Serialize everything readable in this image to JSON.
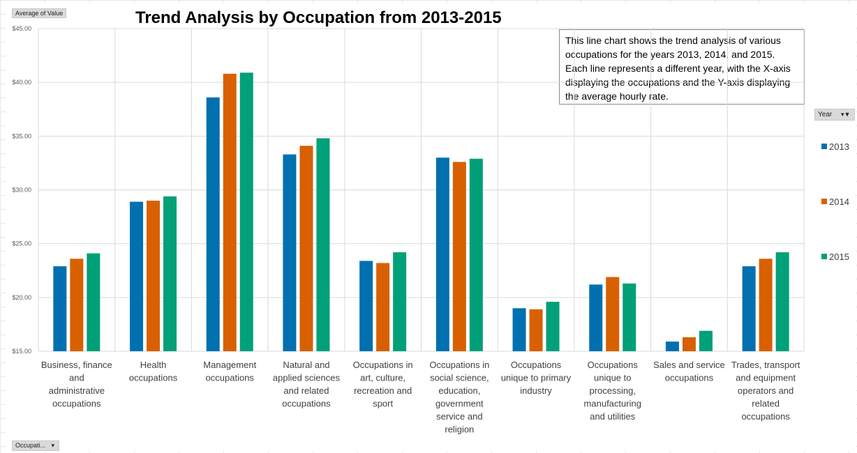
{
  "field_buttons": {
    "values": "Average of Value",
    "legend": "Year",
    "axis": "Occupati..."
  },
  "textbox": "This line chart shows the trend analysis of various occupations for the years 2013, 2014, and 2015. Each line represents a different year, with the X-axis displaying the occupations and the Y-axis displaying the average hourly rate.",
  "chart_data": {
    "type": "bar",
    "title": "Trend Analysis by Occupation from 2013-2015",
    "xlabel": "",
    "ylabel": "",
    "ylim": [
      15,
      45
    ],
    "y_ticks": [
      "$15.00",
      "$20.00",
      "$25.00",
      "$30.00",
      "$35.00",
      "$40.00",
      "$45.00"
    ],
    "grid": true,
    "legend_position": "right",
    "categories": [
      "Business, finance and administrative occupations",
      "Health occupations",
      "Management occupations",
      "Natural and applied sciences and related occupations",
      "Occupations in art, culture, recreation and sport",
      "Occupations in social science, education, government service and religion",
      "Occupations unique to primary industry",
      "Occupations unique to processing, manufacturing and utilities",
      "Sales and service occupations",
      "Trades, transport and equipment operators and related occupations"
    ],
    "category_lines": [
      [
        "Business, finance",
        "and",
        "administrative",
        "occupations"
      ],
      [
        "Health",
        "occupations"
      ],
      [
        "Management",
        "occupations"
      ],
      [
        "Natural and",
        "applied sciences",
        "and related",
        "occupations"
      ],
      [
        "Occupations in",
        "art, culture,",
        "recreation and",
        "sport"
      ],
      [
        "Occupations in",
        "social science,",
        "education,",
        "government",
        "service and",
        "religion"
      ],
      [
        "Occupations",
        "unique to primary",
        "industry"
      ],
      [
        "Occupations",
        "unique to",
        "processing,",
        "manufacturing",
        "and utilities"
      ],
      [
        "Sales and service",
        "occupations"
      ],
      [
        "Trades, transport",
        "and equipment",
        "operators and",
        "related",
        "occupations"
      ]
    ],
    "series": [
      {
        "name": "2013",
        "color": "#0070b0",
        "values": [
          22.9,
          28.9,
          38.6,
          33.3,
          23.4,
          33.0,
          19.0,
          21.2,
          15.9,
          22.9
        ]
      },
      {
        "name": "2014",
        "color": "#d86000",
        "values": [
          23.6,
          29.0,
          40.8,
          34.1,
          23.2,
          32.6,
          18.9,
          21.9,
          16.3,
          23.6
        ]
      },
      {
        "name": "2015",
        "color": "#00a078",
        "values": [
          24.1,
          29.4,
          40.9,
          34.8,
          24.2,
          32.9,
          19.6,
          21.3,
          16.9,
          24.2
        ]
      }
    ]
  }
}
